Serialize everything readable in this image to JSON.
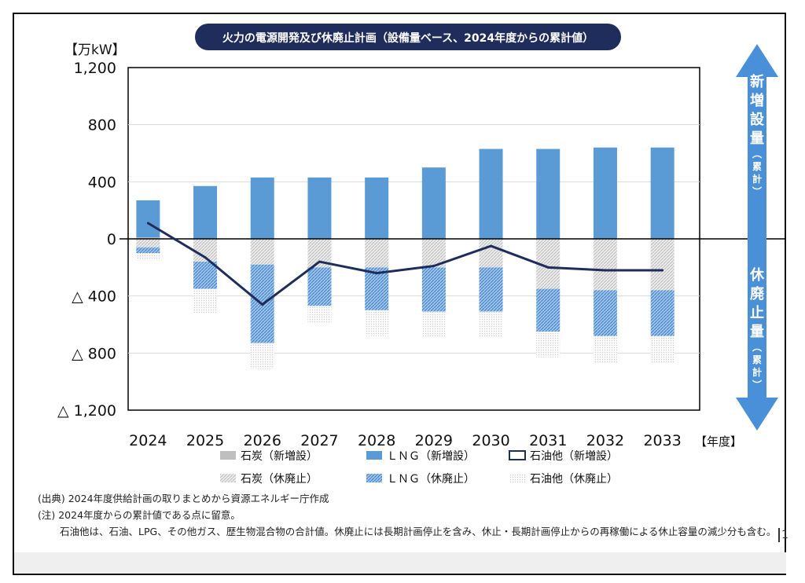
{
  "chart_data": {
    "type": "bar",
    "title": "火力の電源開発及び休廃止計画（設備量ベース、2024年度からの累計値）",
    "unit_label": "【万kW】",
    "x_unit_label": "【年度】",
    "categories": [
      "2024",
      "2025",
      "2026",
      "2027",
      "2028",
      "2029",
      "2030",
      "2031",
      "2032",
      "2033"
    ],
    "y_ticks": [
      {
        "value": 1200,
        "label": "1,200"
      },
      {
        "value": 800,
        "label": "800"
      },
      {
        "value": 400,
        "label": "400"
      },
      {
        "value": 0,
        "label": "0"
      },
      {
        "value": -400,
        "label": "△ 400"
      },
      {
        "value": -800,
        "label": "△ 800"
      },
      {
        "value": -1200,
        "label": "△ 1,200"
      }
    ],
    "ylim": [
      -1200,
      1200
    ],
    "grid": true,
    "series": [
      {
        "name": "石炭（新増設）",
        "style": "solid-gray",
        "values": [
          10,
          0,
          0,
          0,
          0,
          0,
          0,
          0,
          0,
          0
        ]
      },
      {
        "name": "ＬＮＧ（新増設）",
        "style": "solid-blue",
        "values": [
          260,
          370,
          430,
          430,
          430,
          500,
          630,
          630,
          640,
          640
        ]
      },
      {
        "name": "石油他（新増設）",
        "style": "line",
        "values": [
          110,
          -130,
          -460,
          -160,
          -240,
          -190,
          -50,
          -200,
          -220,
          -220
        ]
      },
      {
        "name": "石炭（休廃止）",
        "style": "hatched-gray",
        "values": [
          -60,
          -160,
          -180,
          -200,
          -200,
          -200,
          -200,
          -350,
          -360,
          -360
        ]
      },
      {
        "name": "ＬＮＧ（休廃止）",
        "style": "hatched-blue",
        "values": [
          -40,
          -190,
          -550,
          -270,
          -300,
          -310,
          -310,
          -300,
          -320,
          -320
        ]
      },
      {
        "name": "石油他（休廃止）",
        "style": "hatched-lightgray",
        "values": [
          -50,
          -170,
          -180,
          -120,
          -180,
          -180,
          -180,
          -180,
          -190,
          -190
        ]
      }
    ],
    "side_labels": {
      "top": "新増設量（累計）",
      "bottom": "休廃止量（累計）"
    },
    "colors": {
      "lng": "#5b9bd5",
      "coal": "#bfbfbf",
      "line": "#1f2d5c",
      "title_bg": "#1f2d5c",
      "arrow": "#4a90d9"
    }
  },
  "footnotes": {
    "source": "(出典) 2024年度供給計画の取りまとめから資源エネルギー庁作成",
    "note1": "(注) 2024年度からの累計値である点に留意。",
    "note2": "石油他は、石油、LPG、その他ガス、歴生物混合物の合計値。休廃止には長期計画停止を含み、休止・長期計画停止からの再稼働による休止容量の減少分も含む。"
  },
  "corner_mark": "1"
}
